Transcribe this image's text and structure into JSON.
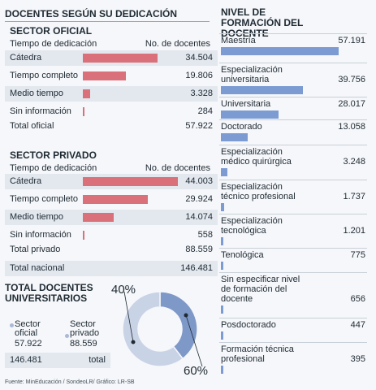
{
  "chart_data": [
    {
      "type": "bar",
      "title": "DOCENTES SEGÚN SU DEDICACIÓN",
      "subtitle": "SECTOR OFICIAL",
      "header_label": "Tiempo de dedicación",
      "header_value": "No. de docentes",
      "categories": [
        "Cátedra",
        "Tiempo completo",
        "Medio tiempo",
        "Sin información"
      ],
      "values": [
        34504,
        19806,
        3328,
        284
      ],
      "labels": [
        "34.504",
        "19.806",
        "3.328",
        "284"
      ],
      "total_label": "Total oficial",
      "total_value": "57.922"
    },
    {
      "type": "bar",
      "subtitle": "SECTOR PRIVADO",
      "header_label": "Tiempo de dedicación",
      "header_value": "No. de docentes",
      "categories": [
        "Cátedra",
        "Tiempo completo",
        "Medio tiempo",
        "Sin información"
      ],
      "values": [
        44003,
        29924,
        14074,
        558
      ],
      "labels": [
        "44.003",
        "29.924",
        "14.074",
        "558"
      ],
      "total_label": "Total privado",
      "total_value": "88.559",
      "grand_total_label": "Total nacional",
      "grand_total_value": "146.481"
    },
    {
      "type": "bar",
      "title": "NIVEL DE FORMACIÓN DEL DOCENTE",
      "categories": [
        "Maestría",
        "Especialización universitaria",
        "Universitaria",
        "Doctorado",
        "Especialización médico quirúrgica",
        "Especialización técnico profesional",
        "Especialización tecnológica",
        "Tenológica",
        "Sin especificar nivel de formación del docente",
        "Posdoctorado",
        "Formación técnica profesional"
      ],
      "display": [
        "Maestría",
        "Especialización\nuniversitaria",
        "Universitaria",
        "Doctorado",
        "Especialización\nmédico quirúrgica",
        "Especialización\ntécnico profesional",
        "Especialización\ntecnológica",
        "Tenológica",
        "Sin especificar nivel\nde formación del\ndocente",
        "Posdoctorado",
        "Formación técnica\nprofesional"
      ],
      "values": [
        57191,
        39756,
        28017,
        13058,
        3248,
        1737,
        1201,
        775,
        656,
        447,
        395
      ],
      "labels": [
        "57.191",
        "39.756",
        "28.017",
        "13.058",
        "3.248",
        "1.737",
        "1.201",
        "775",
        "656",
        "447",
        "395"
      ]
    },
    {
      "type": "pie",
      "title": "TOTAL DOCENTES UNIVERSITARIOS",
      "categories": [
        "Sector oficial",
        "Sector privado"
      ],
      "display": [
        "Sector\noficial",
        "Sector\nprivado"
      ],
      "values": [
        57922,
        88559
      ],
      "labels": [
        "57.922",
        "88.559"
      ],
      "percent_labels": [
        "40%",
        "60%"
      ],
      "total_value": "146.481",
      "total_label": "total",
      "colors": [
        "#7e98c8",
        "#c9d3e6"
      ]
    }
  ],
  "source": "Fuente: MinEducación / SondeoLR/ Gráfico: LR-SB"
}
